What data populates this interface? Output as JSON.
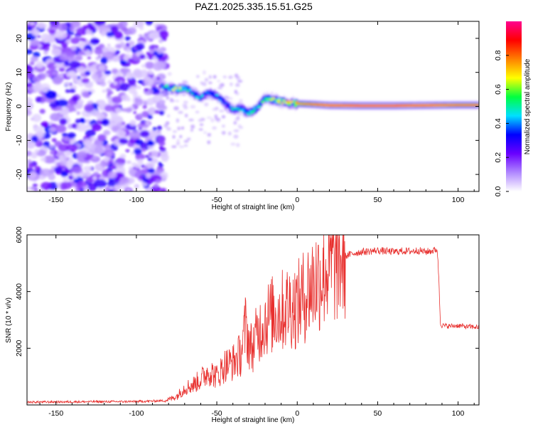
{
  "title": "PAZ1.2025.335.15.51.G25",
  "chart_data": [
    {
      "type": "heatmap",
      "xlabel": "Height of straight line (km)",
      "ylabel": "Frequency (Hz)",
      "xlim": [
        -168,
        113
      ],
      "ylim": [
        -25,
        25
      ],
      "xticks": [
        -150,
        -100,
        -50,
        0,
        50,
        100
      ],
      "xtick_labels": [
        "-150",
        "-100",
        "-50",
        "0",
        "50",
        "100"
      ],
      "yticks": [
        20,
        10,
        0,
        -10,
        -20
      ],
      "ytick_labels": [
        "20",
        "10",
        "0",
        "-10",
        "-20"
      ],
      "colorbar": {
        "label": "Normalized spectral amplitude",
        "range": [
          0,
          1
        ],
        "ticks": [
          0.0,
          0.2,
          0.4,
          0.6,
          0.8
        ],
        "tick_labels": [
          "0.0",
          "0.2",
          "0.4",
          "0.6",
          "0.8"
        ],
        "colors": [
          "#ffffff",
          "#b088ff",
          "#6a00ff",
          "#0000ff",
          "#00e0ff",
          "#00ff40",
          "#ffff00",
          "#ff8000",
          "#ff0000",
          "#ff0090"
        ]
      },
      "ridge": {
        "x": [
          -85,
          -80,
          -75,
          -70,
          -65,
          -60,
          -55,
          -50,
          -45,
          -40,
          -35,
          -30,
          -25,
          -20,
          -15,
          -10,
          -5,
          0,
          10,
          20,
          40,
          60,
          80,
          100,
          113
        ],
        "frequency_hz": [
          6,
          5.5,
          5,
          5.5,
          4,
          2.5,
          4,
          3,
          1,
          -1,
          -0.5,
          -2,
          -0.5,
          2.5,
          2,
          1.5,
          1,
          0.8,
          0.6,
          0.3,
          0.2,
          0.2,
          0.3,
          0.4,
          0.4
        ],
        "peak_amplitude": [
          0.3,
          0.55,
          0.6,
          0.5,
          0.45,
          0.4,
          0.45,
          0.4,
          0.35,
          0.45,
          0.45,
          0.5,
          0.45,
          0.5,
          0.55,
          0.6,
          0.65,
          0.75,
          0.85,
          0.9,
          0.95,
          0.95,
          0.9,
          0.85,
          0.85
        ]
      },
      "noise_region": {
        "x_from": -168,
        "x_to": -82
      }
    },
    {
      "type": "line",
      "xlabel": "Height of straight line (km)",
      "ylabel": "SNR (10 * v/v)",
      "xlim": [
        -168,
        113
      ],
      "ylim": [
        0,
        6000
      ],
      "xticks": [
        -150,
        -100,
        -50,
        0,
        50,
        100
      ],
      "xtick_labels": [
        "-150",
        "-100",
        "-50",
        "0",
        "50",
        "100"
      ],
      "yticks": [
        2000,
        4000,
        6000
      ],
      "ytick_labels": [
        "2000",
        "4000",
        "6000"
      ],
      "color": "#e8302e",
      "series": [
        {
          "name": "SNR",
          "x": [
            -168,
            -140,
            -100,
            -82,
            -75,
            -70,
            -65,
            -60,
            -55,
            -50,
            -45,
            -40,
            -35,
            -32,
            -30,
            -28,
            -25,
            -20,
            -15,
            -10,
            -5,
            0,
            5,
            10,
            15,
            20,
            25,
            30,
            35,
            40,
            45,
            50,
            55,
            60,
            65,
            70,
            75,
            80,
            85,
            87,
            88,
            89,
            90,
            95,
            100,
            105,
            110,
            113
          ],
          "y": [
            100,
            110,
            120,
            150,
            300,
            600,
            700,
            900,
            1200,
            1000,
            1400,
            1500,
            1800,
            2800,
            2200,
            2000,
            2500,
            3000,
            3200,
            3300,
            3500,
            3500,
            3900,
            4300,
            4600,
            4900,
            5100,
            5250,
            5350,
            5400,
            5420,
            5450,
            5420,
            5400,
            5430,
            5420,
            5450,
            5400,
            5450,
            5500,
            4500,
            2900,
            2800,
            2780,
            2800,
            2760,
            2750,
            2740
          ]
        }
      ]
    }
  ]
}
